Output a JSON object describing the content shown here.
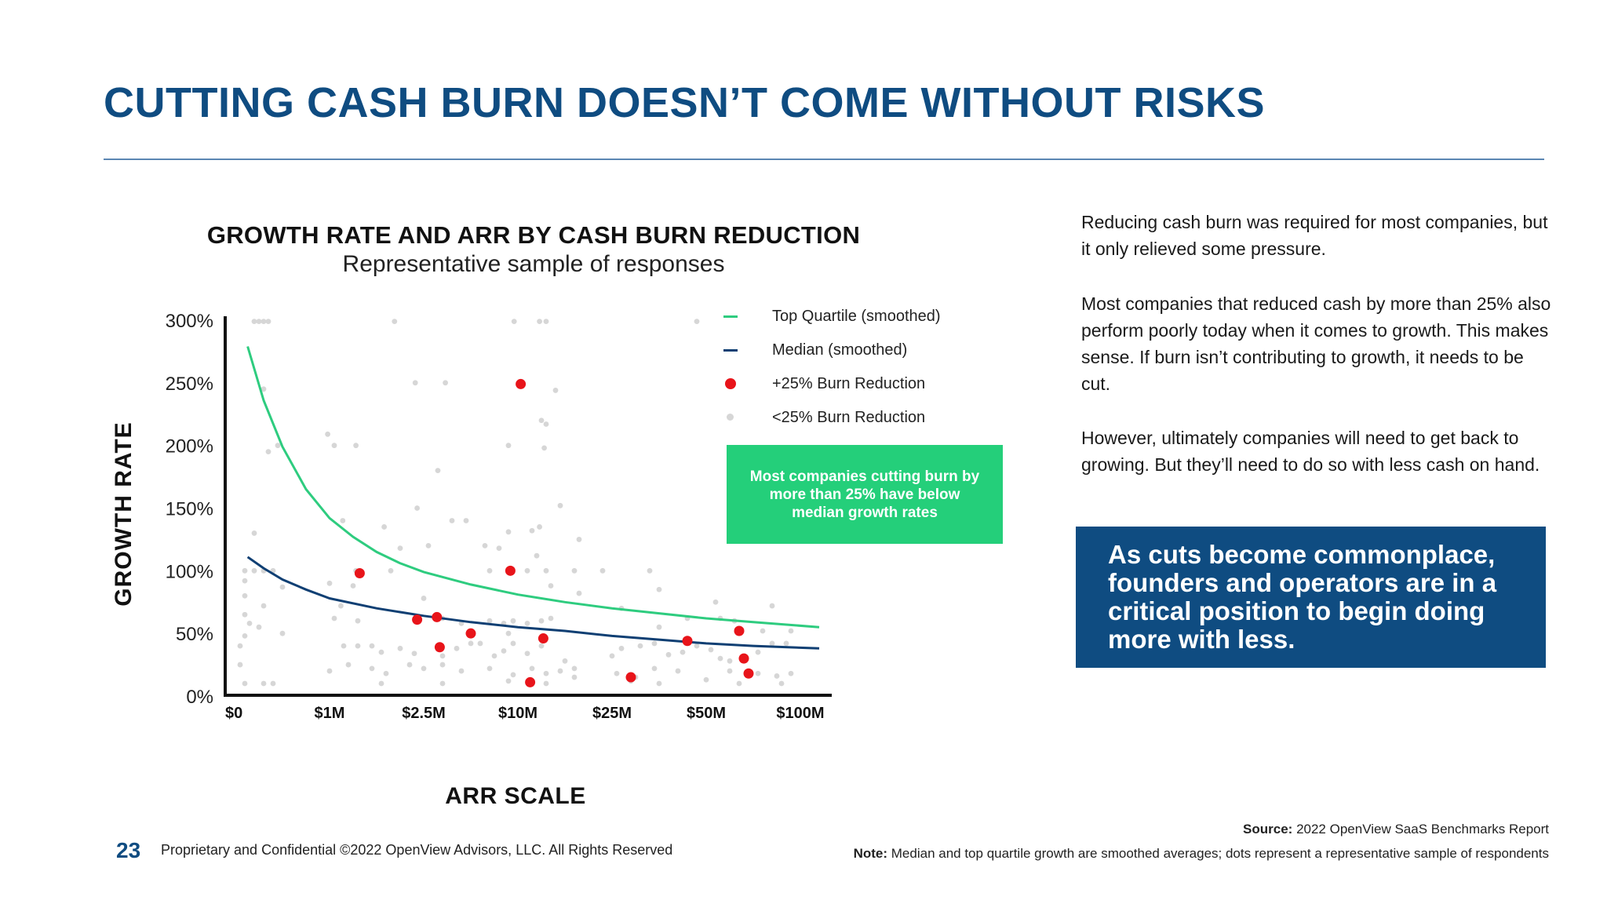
{
  "slide": {
    "title": "CUTTING CASH BURN DOESN’T COME WITHOUT RISKS",
    "page_number": "23",
    "footer": "Proprietary and Confidential ©2022 OpenView Advisors, LLC. All Rights Reserved"
  },
  "legend": {
    "top_quartile": "Top Quartile (smoothed)",
    "median": "Median (smoothed)",
    "burn_plus": "+25% Burn Reduction",
    "burn_minus": "<25% Burn Reduction"
  },
  "callout": "Most companies cutting burn by more than 25% have below median growth rates",
  "right_text": {
    "p1": "Reducing cash burn was required for most companies, but it only relieved some pressure.",
    "p2": "Most companies that reduced cash by more than 25% also perform poorly today when it comes to growth. This makes sense. If burn isn’t contributing to growth, it needs to be cut.",
    "p3": "However, ultimately companies will need to get back to growing. But they’ll need to do so with less cash on hand."
  },
  "highlight": "As cuts become commonplace, founders and operators are in a critical position to begin doing more with less.",
  "source": {
    "label": "Source:",
    "text": "2022 OpenView SaaS Benchmarks Report"
  },
  "note": {
    "label": "Note:",
    "text": "Median and top quartile growth are smoothed averages; dots represent a representative sample of respondents"
  },
  "colors": {
    "brand_blue": "#0f4c81",
    "top_quartile": "#2ecc7f",
    "median": "#0f3f73",
    "burn_plus": "#e8141a",
    "burn_minus": "#d6d6d6",
    "callout_green": "#24cf7a"
  },
  "chart_data": {
    "type": "scatter",
    "title": "GROWTH RATE AND ARR BY CASH BURN REDUCTION",
    "subtitle": "Representative sample of responses",
    "xlabel": "ARR SCALE",
    "ylabel": "GROWTH RATE",
    "x_scale": "categorical-log",
    "x_ticks": [
      "$0",
      "$1M",
      "$2.5M",
      "$10M",
      "$25M",
      "$50M",
      "$100M"
    ],
    "y_ticks": [
      "0%",
      "50%",
      "100%",
      "150%",
      "200%",
      "250%",
      "300%"
    ],
    "ylim": [
      0,
      300
    ],
    "x_domain": [
      0,
      6
    ],
    "grid": false,
    "legend_position": "top-right",
    "series": [
      {
        "name": "Top Quartile (smoothed)",
        "kind": "line",
        "points": [
          [
            0.13,
            279
          ],
          [
            0.3,
            236
          ],
          [
            0.5,
            199
          ],
          [
            0.75,
            165
          ],
          [
            1.0,
            142
          ],
          [
            1.25,
            127
          ],
          [
            1.5,
            115
          ],
          [
            1.75,
            106
          ],
          [
            2.0,
            99
          ],
          [
            2.5,
            89
          ],
          [
            3.0,
            81
          ],
          [
            3.5,
            75
          ],
          [
            4.0,
            70
          ],
          [
            4.5,
            66
          ],
          [
            5.0,
            62
          ],
          [
            5.5,
            59
          ],
          [
            6.2,
            55
          ]
        ]
      },
      {
        "name": "Median (smoothed)",
        "kind": "line",
        "points": [
          [
            0.13,
            111
          ],
          [
            0.3,
            102
          ],
          [
            0.5,
            93
          ],
          [
            0.75,
            85
          ],
          [
            1.0,
            78
          ],
          [
            1.5,
            70
          ],
          [
            2.0,
            64
          ],
          [
            2.5,
            59
          ],
          [
            3.0,
            55
          ],
          [
            3.5,
            52
          ],
          [
            4.0,
            48
          ],
          [
            4.5,
            45
          ],
          [
            5.0,
            42
          ],
          [
            5.5,
            40
          ],
          [
            6.2,
            38
          ]
        ]
      },
      {
        "name": "+25% Burn Reduction",
        "kind": "points",
        "points": [
          [
            1.32,
            98
          ],
          [
            1.93,
            61
          ],
          [
            2.14,
            63
          ],
          [
            2.17,
            39
          ],
          [
            2.5,
            50
          ],
          [
            2.92,
            100
          ],
          [
            3.03,
            249
          ],
          [
            3.13,
            11
          ],
          [
            3.27,
            46
          ],
          [
            4.2,
            15
          ],
          [
            4.8,
            44
          ],
          [
            5.35,
            52
          ],
          [
            5.4,
            30
          ],
          [
            5.45,
            18
          ]
        ]
      },
      {
        "name": "<25% Burn Reduction",
        "kind": "points",
        "points": [
          [
            0.2,
            299
          ],
          [
            0.25,
            299
          ],
          [
            0.3,
            299
          ],
          [
            0.35,
            299
          ],
          [
            1.69,
            299
          ],
          [
            2.96,
            299
          ],
          [
            3.23,
            299
          ],
          [
            3.3,
            299
          ],
          [
            4.9,
            299
          ],
          [
            0.3,
            245
          ],
          [
            1.91,
            250
          ],
          [
            2.23,
            250
          ],
          [
            3.4,
            244
          ],
          [
            0.98,
            209
          ],
          [
            3.25,
            220
          ],
          [
            3.3,
            217
          ],
          [
            0.35,
            195
          ],
          [
            0.45,
            200
          ],
          [
            1.05,
            200
          ],
          [
            1.28,
            200
          ],
          [
            2.9,
            200
          ],
          [
            3.28,
            198
          ],
          [
            2.15,
            180
          ],
          [
            1.93,
            150
          ],
          [
            3.45,
            152
          ],
          [
            1.14,
            140
          ],
          [
            2.3,
            140
          ],
          [
            2.45,
            140
          ],
          [
            1.58,
            135
          ],
          [
            2.9,
            131
          ],
          [
            3.15,
            132
          ],
          [
            3.23,
            135
          ],
          [
            3.65,
            125
          ],
          [
            0.2,
            130
          ],
          [
            1.75,
            118
          ],
          [
            2.05,
            120
          ],
          [
            2.65,
            120
          ],
          [
            2.8,
            118
          ],
          [
            3.2,
            112
          ],
          [
            0.1,
            100
          ],
          [
            0.2,
            100
          ],
          [
            0.3,
            100
          ],
          [
            0.4,
            100
          ],
          [
            1.28,
            100
          ],
          [
            1.65,
            100
          ],
          [
            2.7,
            100
          ],
          [
            3.1,
            100
          ],
          [
            3.3,
            100
          ],
          [
            3.6,
            100
          ],
          [
            3.9,
            100
          ],
          [
            4.4,
            100
          ],
          [
            0.5,
            87
          ],
          [
            1.0,
            90
          ],
          [
            1.25,
            88
          ],
          [
            2.0,
            78
          ],
          [
            3.35,
            88
          ],
          [
            3.65,
            82
          ],
          [
            4.5,
            85
          ],
          [
            5.1,
            75
          ],
          [
            5.7,
            72
          ],
          [
            0.1,
            65
          ],
          [
            0.3,
            72
          ],
          [
            1.05,
            62
          ],
          [
            1.12,
            72
          ],
          [
            1.3,
            60
          ],
          [
            2.2,
            62
          ],
          [
            2.4,
            58
          ],
          [
            2.7,
            60
          ],
          [
            2.85,
            58
          ],
          [
            2.9,
            50
          ],
          [
            2.95,
            60
          ],
          [
            3.1,
            58
          ],
          [
            3.25,
            60
          ],
          [
            3.35,
            62
          ],
          [
            4.1,
            70
          ],
          [
            4.5,
            55
          ],
          [
            4.8,
            62
          ],
          [
            5.15,
            62
          ],
          [
            5.3,
            60
          ],
          [
            5.6,
            52
          ],
          [
            5.9,
            52
          ],
          [
            0.1,
            48
          ],
          [
            0.25,
            55
          ],
          [
            0.5,
            50
          ],
          [
            1.15,
            40
          ],
          [
            1.3,
            40
          ],
          [
            1.45,
            40
          ],
          [
            1.55,
            35
          ],
          [
            1.75,
            38
          ],
          [
            1.9,
            34
          ],
          [
            2.2,
            32
          ],
          [
            2.35,
            38
          ],
          [
            2.5,
            42
          ],
          [
            2.6,
            42
          ],
          [
            2.75,
            32
          ],
          [
            2.85,
            36
          ],
          [
            2.95,
            42
          ],
          [
            3.1,
            34
          ],
          [
            3.25,
            40
          ],
          [
            3.5,
            28
          ],
          [
            4.0,
            32
          ],
          [
            4.1,
            38
          ],
          [
            4.3,
            40
          ],
          [
            4.45,
            42
          ],
          [
            4.6,
            33
          ],
          [
            4.75,
            35
          ],
          [
            4.9,
            40
          ],
          [
            5.05,
            37
          ],
          [
            5.15,
            30
          ],
          [
            5.25,
            28
          ],
          [
            5.55,
            35
          ],
          [
            5.7,
            42
          ],
          [
            5.85,
            42
          ],
          [
            1.0,
            20
          ],
          [
            1.2,
            25
          ],
          [
            1.45,
            22
          ],
          [
            1.6,
            18
          ],
          [
            1.85,
            25
          ],
          [
            2.0,
            22
          ],
          [
            2.2,
            25
          ],
          [
            2.4,
            20
          ],
          [
            2.7,
            22
          ],
          [
            2.95,
            17
          ],
          [
            3.15,
            22
          ],
          [
            3.3,
            18
          ],
          [
            3.45,
            20
          ],
          [
            3.6,
            22
          ],
          [
            4.05,
            18
          ],
          [
            4.25,
            15
          ],
          [
            4.45,
            22
          ],
          [
            4.7,
            20
          ],
          [
            5.25,
            20
          ],
          [
            5.55,
            18
          ],
          [
            5.75,
            16
          ],
          [
            5.9,
            18
          ],
          [
            0.1,
            10
          ],
          [
            0.3,
            10
          ],
          [
            0.4,
            10
          ],
          [
            1.55,
            10
          ],
          [
            2.2,
            10
          ],
          [
            2.9,
            12
          ],
          [
            3.3,
            10
          ],
          [
            3.6,
            15
          ],
          [
            4.2,
            12
          ],
          [
            4.5,
            10
          ],
          [
            5.0,
            13
          ],
          [
            5.35,
            10
          ],
          [
            5.8,
            10
          ],
          [
            0.1,
            92
          ],
          [
            0.1,
            80
          ],
          [
            0.15,
            58
          ],
          [
            0.05,
            40
          ],
          [
            0.05,
            25
          ]
        ]
      }
    ]
  }
}
